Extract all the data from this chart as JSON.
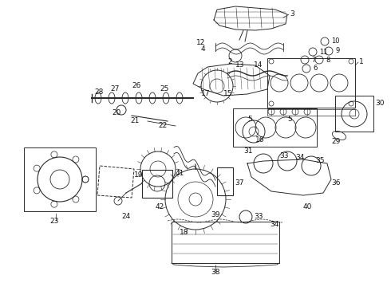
{
  "background_color": "#ffffff",
  "line_color": "#2a2a2a",
  "text_color": "#111111",
  "font_size": 6.5,
  "figsize": [
    4.9,
    3.6
  ],
  "dpi": 100
}
